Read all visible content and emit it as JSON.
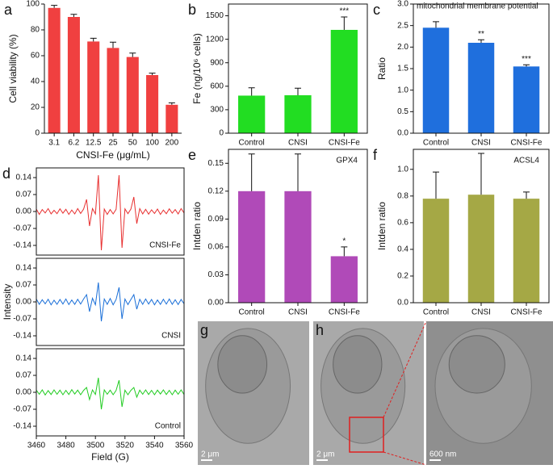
{
  "chart_data": [
    {
      "type": "bar",
      "panel": "a",
      "categories": [
        "3.1",
        "6.2",
        "12.5",
        "25",
        "50",
        "100",
        "200"
      ],
      "values": [
        97,
        90,
        71,
        66,
        59,
        45,
        22
      ],
      "errors": [
        2,
        2,
        2.5,
        4.5,
        3,
        1.5,
        1.5
      ],
      "color": "#f04040",
      "ylim": [
        0,
        100
      ],
      "yticks": [
        0,
        20,
        40,
        60,
        80,
        100
      ],
      "ylabel": "Cell viability (%)",
      "xlabel": "CNSI-Fe (μg/mL)"
    },
    {
      "type": "bar",
      "panel": "b",
      "categories": [
        "Control",
        "CNSI",
        "CNSI-Fe"
      ],
      "values": [
        480,
        485,
        1320
      ],
      "errors": [
        100,
        90,
        165
      ],
      "color": "#22dd22",
      "ylim": [
        0,
        1650
      ],
      "yticks": [
        0,
        300,
        600,
        900,
        1200,
        1500
      ],
      "ylabel": "Fe (ng/10⁶ cells)",
      "significance": [
        {
          "category": "CNSI-Fe",
          "label": "***"
        }
      ]
    },
    {
      "type": "bar",
      "panel": "c",
      "title": "mitochondrial membrane potential",
      "categories": [
        "Control",
        "CNSI",
        "CNSI-Fe"
      ],
      "values": [
        2.45,
        2.1,
        1.55
      ],
      "errors": [
        0.14,
        0.07,
        0.04
      ],
      "color": "#1f6fdd",
      "ylim": [
        0,
        3
      ],
      "yticks": [
        {
          "value": 0,
          "label": "0.0"
        },
        0.5,
        {
          "value": 1,
          "label": "1.0"
        },
        1.5,
        {
          "value": 2,
          "label": "2.0"
        },
        2.5,
        {
          "value": 3,
          "label": "3.0"
        }
      ],
      "ylabel": "Ratio",
      "significance": [
        {
          "category": "CNSI",
          "label": "**"
        },
        {
          "category": "CNSI-Fe",
          "label": "***"
        }
      ]
    },
    {
      "type": "line",
      "panel": "d",
      "xlabel": "Field (G)",
      "ylabel": "Intensity",
      "xlim": [
        3460,
        3560
      ],
      "xticks": [
        3460,
        3480,
        3500,
        3520,
        3540,
        3560
      ],
      "ylim": [
        -0.18,
        0.18
      ],
      "yticks": [
        0.14,
        0.07,
        {
          "value": 0,
          "label": "0.00"
        },
        -0.07,
        -0.14
      ],
      "x": [
        3460,
        3462,
        3464,
        3466,
        3468,
        3470,
        3472,
        3474,
        3476,
        3478,
        3480,
        3482,
        3484,
        3486,
        3488,
        3490,
        3492,
        3494,
        3496,
        3498,
        3500,
        3502,
        3504,
        3506,
        3508,
        3510,
        3512,
        3514,
        3516,
        3518,
        3520,
        3522,
        3524,
        3526,
        3528,
        3530,
        3532,
        3534,
        3536,
        3538,
        3540,
        3542,
        3544,
        3546,
        3548,
        3550,
        3552,
        3554,
        3556,
        3558,
        3560
      ],
      "series": [
        {
          "name": "CNSI-Fe",
          "color": "#e83030",
          "values": [
            0.01,
            -0.012,
            0.008,
            -0.006,
            0.012,
            -0.01,
            0.005,
            -0.009,
            0.011,
            -0.007,
            0.009,
            -0.012,
            0.006,
            -0.01,
            0.012,
            -0.008,
            0.01,
            0.05,
            -0.06,
            0.012,
            -0.01,
            0.15,
            -0.16,
            0.01,
            -0.012,
            0.008,
            -0.01,
            0.009,
            0.15,
            -0.15,
            0.011,
            -0.009,
            0.01,
            0.06,
            -0.05,
            0.012,
            -0.01,
            0.009,
            -0.011,
            0.007,
            -0.008,
            0.01,
            -0.012,
            0.006,
            -0.009,
            0.011,
            -0.007,
            0.008,
            -0.01,
            0.012,
            -0.006
          ]
        },
        {
          "name": "CNSI",
          "color": "#1a6fd8",
          "values": [
            0.012,
            -0.01,
            0.009,
            -0.008,
            0.011,
            -0.012,
            0.007,
            -0.01,
            0.01,
            -0.009,
            0.012,
            -0.011,
            0.008,
            -0.01,
            0.011,
            -0.009,
            0.012,
            0.03,
            -0.04,
            0.015,
            -0.012,
            0.08,
            -0.08,
            0.012,
            -0.01,
            0.014,
            -0.012,
            0.01,
            0.06,
            -0.07,
            0.012,
            -0.011,
            0.01,
            0.03,
            -0.03,
            0.011,
            -0.01,
            0.012,
            -0.009,
            0.01,
            -0.012,
            0.008,
            -0.01,
            0.011,
            -0.009,
            0.012,
            -0.01,
            0.009,
            -0.011,
            0.01,
            -0.008
          ]
        },
        {
          "name": "Control",
          "color": "#22cc22",
          "values": [
            0.009,
            -0.008,
            0.01,
            -0.011,
            0.007,
            -0.009,
            0.01,
            -0.008,
            0.009,
            -0.01,
            0.008,
            -0.009,
            0.011,
            -0.007,
            0.009,
            -0.01,
            0.008,
            0.02,
            -0.03,
            0.01,
            -0.009,
            0.06,
            -0.07,
            0.01,
            -0.008,
            0.009,
            -0.01,
            0.008,
            0.05,
            -0.06,
            0.009,
            -0.01,
            0.008,
            0.02,
            -0.02,
            0.009,
            -0.008,
            0.01,
            -0.009,
            0.008,
            -0.01,
            0.009,
            -0.007,
            0.01,
            -0.009,
            0.008,
            -0.01,
            0.009,
            -0.008,
            0.01,
            -0.009
          ]
        }
      ]
    },
    {
      "type": "bar",
      "panel": "e",
      "title": "GPX4",
      "categories": [
        "Control",
        "CNSI",
        "CNSI-Fe"
      ],
      "values": [
        0.12,
        0.12,
        0.05
      ],
      "errors": [
        0.04,
        0.04,
        0.01
      ],
      "color": "#b04ab8",
      "ylim": [
        0,
        0.165
      ],
      "yticks": [
        {
          "value": 0,
          "label": "0.00"
        },
        0.03,
        0.06,
        0.09,
        0.12,
        0.15
      ],
      "ylabel": "Intden ratio",
      "significance": [
        {
          "category": "CNSI-Fe",
          "label": "*"
        }
      ]
    },
    {
      "type": "bar",
      "panel": "f",
      "title": "ACSL4",
      "categories": [
        "Control",
        "CNSI",
        "CNSI-Fe"
      ],
      "values": [
        0.78,
        0.81,
        0.78
      ],
      "errors": [
        0.2,
        0.31,
        0.05
      ],
      "color": "#a5a845",
      "ylim": [
        0,
        1.15
      ],
      "yticks": [
        {
          "value": 0,
          "label": "0.0"
        },
        0.2,
        0.4,
        0.6,
        0.8,
        {
          "value": 1,
          "label": "1.0"
        }
      ],
      "ylabel": "Intden ratio"
    }
  ],
  "images": [
    {
      "panel": "g",
      "scale_bar": "2 μm"
    },
    {
      "panel": "h",
      "scale_bar": "2 μm"
    },
    {
      "scale_bar": "600 nm"
    }
  ]
}
